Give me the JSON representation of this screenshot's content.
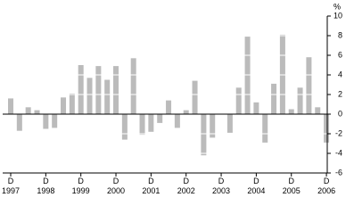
{
  "chart_data": {
    "type": "bar",
    "y_unit": "%",
    "categories": [
      "D 1997",
      null,
      null,
      null,
      "D 1998",
      null,
      null,
      null,
      "D 1999",
      null,
      null,
      null,
      "D 2000",
      null,
      null,
      null,
      "D 2001",
      null,
      null,
      null,
      "D 2002",
      null,
      null,
      null,
      "D 2003",
      null,
      null,
      null,
      "D 2004",
      null,
      null,
      null,
      "D 2005",
      null,
      null,
      null,
      "D 2006"
    ],
    "values": [
      1.6,
      -1.7,
      0.7,
      0.4,
      -1.5,
      -1.4,
      1.7,
      2.1,
      5.0,
      3.7,
      4.9,
      3.5,
      4.9,
      -2.6,
      5.7,
      -2.1,
      -1.8,
      -0.9,
      1.4,
      -1.4,
      0.4,
      3.4,
      -4.2,
      -2.4,
      0,
      -1.9,
      2.7,
      7.9,
      1.2,
      -2.9,
      3.1,
      8.1,
      0.5,
      2.7,
      5.8,
      0.7,
      -2.9
    ],
    "color": "#bbbbbb",
    "ylim": [
      -6,
      10
    ],
    "yticks": [
      -6,
      -4,
      -2,
      0,
      2,
      4,
      6,
      8,
      10
    ],
    "grid": true
  }
}
